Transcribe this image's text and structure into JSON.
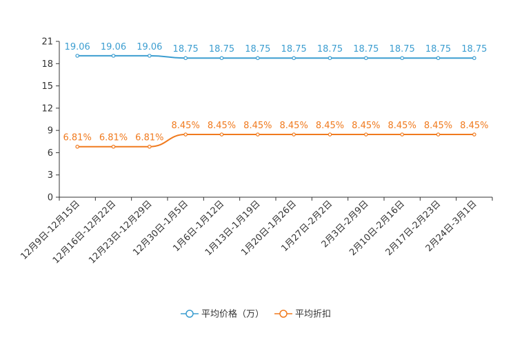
{
  "chart_data": {
    "type": "line",
    "title": "",
    "xlabel": "",
    "ylabel": "",
    "ylim": [
      0,
      21
    ],
    "yticks": [
      0,
      3,
      6,
      9,
      12,
      15,
      18,
      21
    ],
    "grid": false,
    "legend_position": "bottom",
    "categories": [
      "12月9日-12月15日",
      "12月16日-12月22日",
      "12月23日-12月29日",
      "12月30日-1月5日",
      "1月6日-1月12日",
      "1月13日-1月19日",
      "1月20日-1月26日",
      "1月27日-2月2日",
      "2月3日-2月9日",
      "2月10日-2月16日",
      "2月17日-2月23日",
      "2月24日-3月1日"
    ],
    "series": [
      {
        "name": "平均价格（万）",
        "color": "#3b9dd0",
        "values": [
          19.06,
          19.06,
          19.06,
          18.75,
          18.75,
          18.75,
          18.75,
          18.75,
          18.75,
          18.75,
          18.75,
          18.75
        ],
        "labels": [
          "19.06",
          "19.06",
          "19.06",
          "18.75",
          "18.75",
          "18.75",
          "18.75",
          "18.75",
          "18.75",
          "18.75",
          "18.75",
          "18.75"
        ]
      },
      {
        "name": "平均折扣",
        "color": "#f07a1e",
        "values": [
          6.81,
          6.81,
          6.81,
          8.45,
          8.45,
          8.45,
          8.45,
          8.45,
          8.45,
          8.45,
          8.45,
          8.45
        ],
        "labels": [
          "6.81%",
          "6.81%",
          "6.81%",
          "8.45%",
          "8.45%",
          "8.45%",
          "8.45%",
          "8.45%",
          "8.45%",
          "8.45%",
          "8.45%",
          "8.45%"
        ]
      }
    ]
  }
}
